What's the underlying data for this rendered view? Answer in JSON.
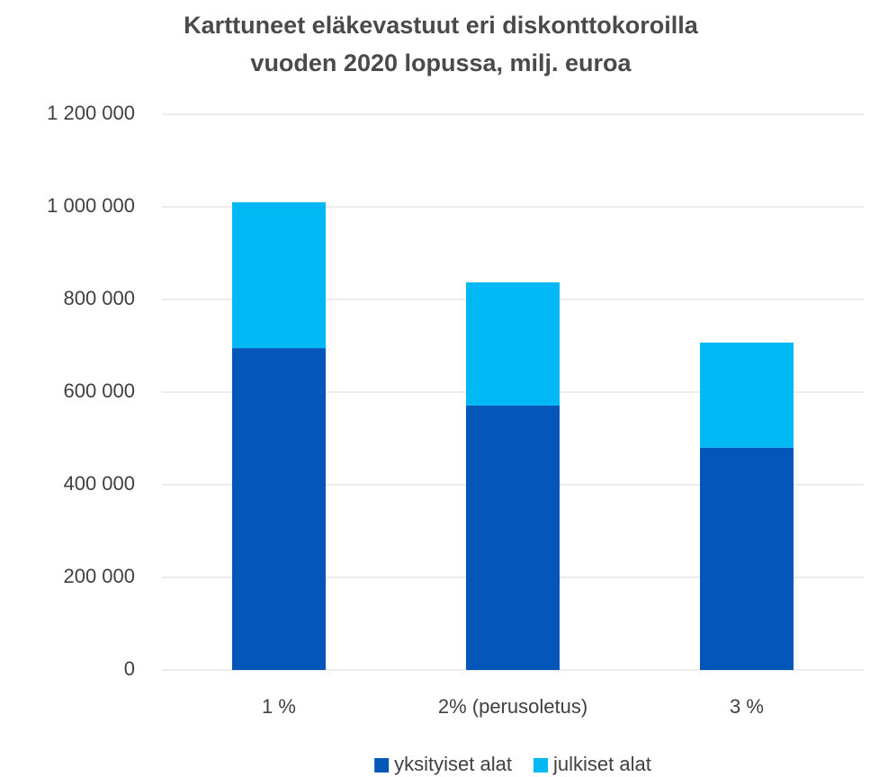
{
  "chart_data": {
    "type": "stacked_bar",
    "title": [
      "Karttuneet eläkevastuut eri diskonttokoroilla",
      "vuoden 2020 lopussa, milj. euroa"
    ],
    "categories": [
      "1 %",
      "2% (perusoletus)",
      "3 %"
    ],
    "series": [
      {
        "name": "yksityiset alat",
        "color": "#0457b8",
        "values": [
          695000,
          571000,
          480000
        ]
      },
      {
        "name": "julkiset alat",
        "color": "#00b8f4",
        "values": [
          315000,
          266000,
          227000
        ]
      }
    ],
    "ylim": [
      0,
      1200000
    ],
    "yticks": [
      0,
      {
        "value": 200000,
        "label": "200 000"
      },
      {
        "value": 400000,
        "label": "400 000"
      },
      {
        "value": 600000,
        "label": "600 000"
      },
      {
        "value": 800000,
        "label": "800 000"
      },
      {
        "value": 1000000,
        "label": "1 000 000"
      },
      {
        "value": 1200000,
        "label": "1 200 000"
      }
    ],
    "grid": true,
    "legend": "bottom"
  }
}
